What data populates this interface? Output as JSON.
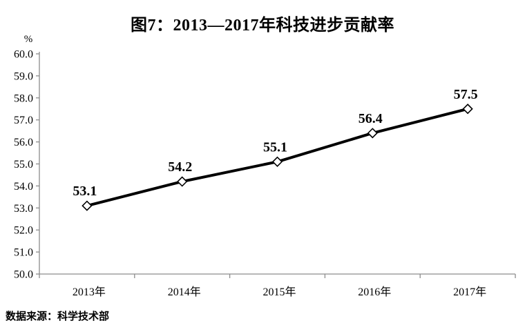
{
  "title": "图7：2013—2017年科技进步贡献率",
  "source_note": "数据来源：科学技术部",
  "chart_data": {
    "type": "line",
    "title": "图7：2013—2017年科技进步贡献率",
    "categories": [
      "2013年",
      "2014年",
      "2015年",
      "2016年",
      "2017年"
    ],
    "values": [
      53.1,
      54.2,
      55.1,
      56.4,
      57.5
    ],
    "data_labels": [
      "53.1",
      "54.2",
      "55.1",
      "56.4",
      "57.5"
    ],
    "unit_label": "%",
    "xlabel": "",
    "ylabel": "%",
    "ylim": [
      50.0,
      60.0
    ],
    "ytick_step": 1.0,
    "ytick_labels": [
      "50.0",
      "51.0",
      "52.0",
      "53.0",
      "54.0",
      "55.0",
      "56.0",
      "57.0",
      "58.0",
      "59.0",
      "60.0"
    ],
    "grid": false,
    "legend_position": "none",
    "marker": "diamond-white-fill-black-stroke",
    "line_color": "#000000",
    "marker_fill": "#ffffff",
    "marker_stroke": "#000000",
    "axis_color": "#8c8c8c",
    "label_color": "#000000",
    "source": "数据来源：科学技术部"
  },
  "colors": {
    "background": "#ffffff",
    "title_text": "#000000",
    "axis": "#8c8c8c",
    "series_line": "#000000",
    "text": "#000000"
  }
}
